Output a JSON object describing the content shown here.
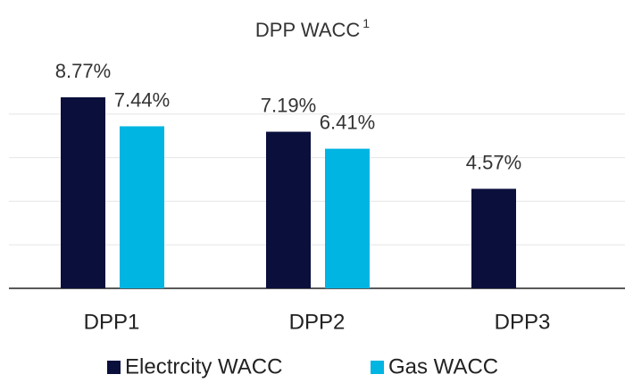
{
  "chart_data": {
    "type": "bar",
    "title": "DPP WACC",
    "title_superscript": "1",
    "categories": [
      "DPP1",
      "DPP2",
      "DPP3"
    ],
    "series": [
      {
        "name": "Electrcity WACC",
        "color": "#0a0f3c",
        "values": [
          8.77,
          7.19,
          4.57
        ],
        "value_labels": [
          "8.77%",
          "7.19%",
          "4.57%"
        ]
      },
      {
        "name": "Gas WACC",
        "color": "#00b5e2",
        "values": [
          7.44,
          6.41,
          null
        ],
        "value_labels": [
          "7.44%",
          "6.41%",
          null
        ]
      }
    ],
    "ylim": [
      0,
      10
    ],
    "yticks": [
      0,
      2,
      4,
      6,
      8
    ],
    "grid": true,
    "legend": "bottom"
  }
}
